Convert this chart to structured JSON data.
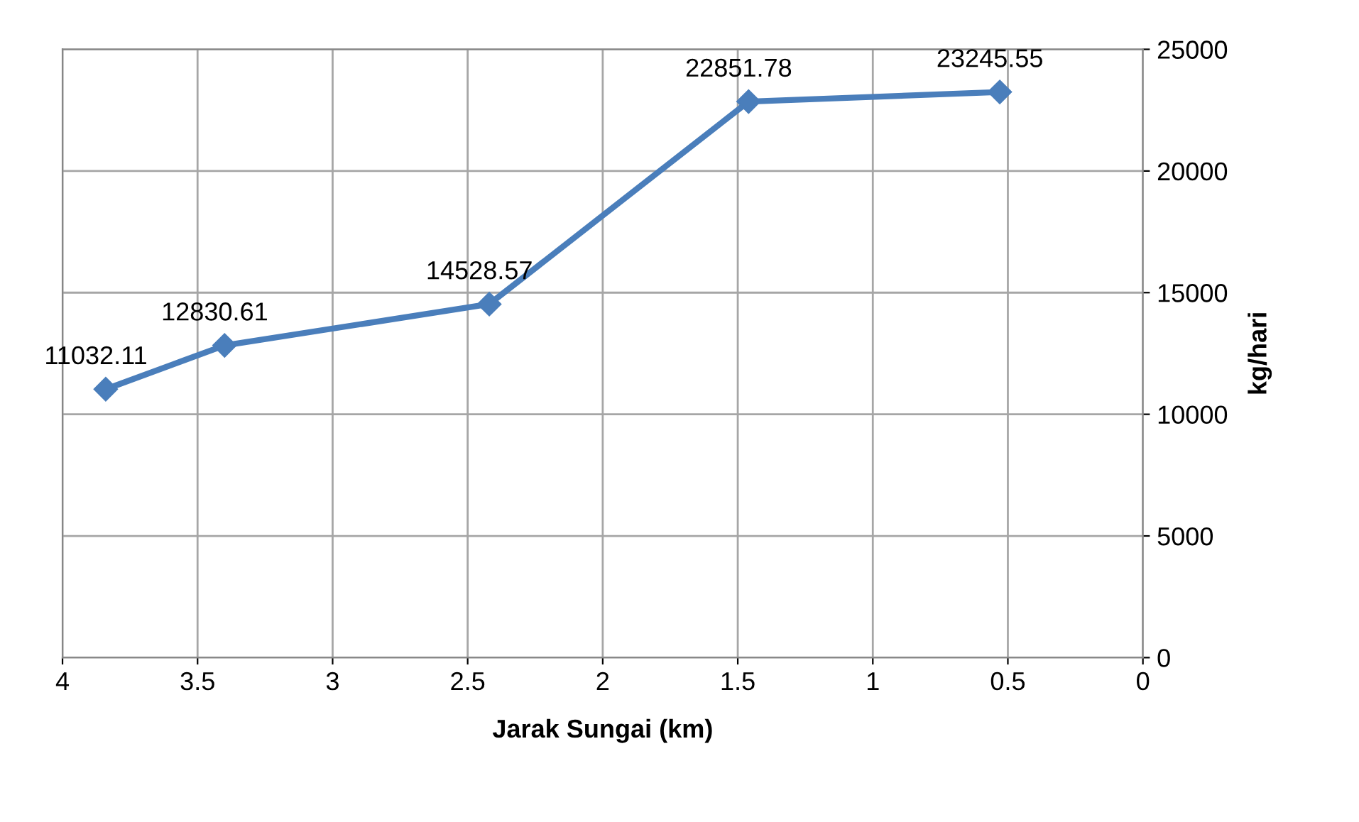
{
  "chart_data": {
    "type": "line",
    "xlabel": "Jarak Sungai (km)",
    "ylabel": "kg/hari",
    "x": [
      3.84,
      3.4,
      2.42,
      1.46,
      0.53
    ],
    "series": [
      {
        "color": "#4a7ebb",
        "values": [
          11032.11,
          12830.61,
          14528.57,
          22851.78,
          23245.55
        ]
      }
    ],
    "xlim": [
      4,
      0
    ],
    "xticks": [
      4,
      3.5,
      3,
      2.5,
      2,
      1.5,
      1,
      0.5,
      0
    ],
    "ylim": [
      0,
      25000
    ],
    "yticks": [
      0,
      5000,
      10000,
      15000,
      20000,
      25000
    ],
    "grid": true,
    "marker": "diamond",
    "line_style": "solid",
    "data_labels": true
  }
}
